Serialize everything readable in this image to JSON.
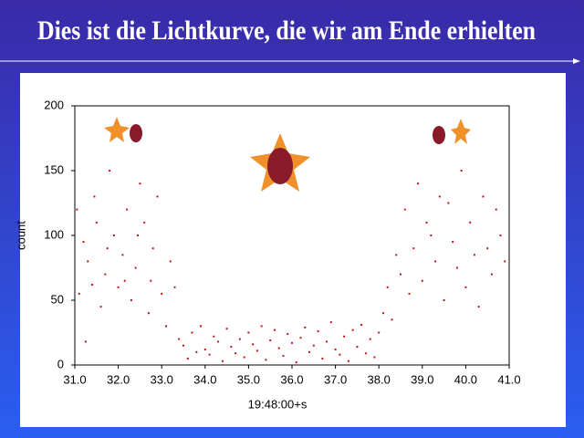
{
  "slide": {
    "title": "Dies ist die Lichtkurve, die wir am Ende erhielten"
  },
  "chart_data": {
    "type": "scatter",
    "xlabel": "19:48:00+s",
    "ylabel": "count",
    "color": "#c0141c",
    "xlim": [
      31,
      41
    ],
    "xticks": [
      {
        "value": 31,
        "label": "31.0"
      },
      {
        "value": 32,
        "label": "32.0"
      },
      {
        "value": 33,
        "label": "33.0"
      },
      {
        "value": 34,
        "label": "34.0"
      },
      {
        "value": 35,
        "label": "35.0"
      },
      {
        "value": 36,
        "label": "36.0"
      },
      {
        "value": 37,
        "label": "37.0"
      },
      {
        "value": 38,
        "label": "38.0"
      },
      {
        "value": 39,
        "label": "39.0"
      },
      {
        "value": 40,
        "label": "40.0"
      },
      {
        "value": 41,
        "label": "41.0"
      }
    ],
    "ylim": [
      0,
      200
    ],
    "yticks": [
      0,
      50,
      100,
      150,
      200
    ],
    "x": [
      31.05,
      31.1,
      31.2,
      31.25,
      31.3,
      31.4,
      31.45,
      31.5,
      31.6,
      31.7,
      31.75,
      31.8,
      31.9,
      32.0,
      32.1,
      32.15,
      32.2,
      32.3,
      32.4,
      32.45,
      32.5,
      32.6,
      32.7,
      32.75,
      32.8,
      32.9,
      33.0,
      33.1,
      33.2,
      33.3,
      33.4,
      33.5,
      33.6,
      33.7,
      33.8,
      33.9,
      34.0,
      34.1,
      34.2,
      34.3,
      34.4,
      34.5,
      34.6,
      34.7,
      34.8,
      34.9,
      35.0,
      35.1,
      35.2,
      35.3,
      35.4,
      35.5,
      35.6,
      35.7,
      35.8,
      35.9,
      36.0,
      36.1,
      36.2,
      36.3,
      36.4,
      36.5,
      36.6,
      36.7,
      36.8,
      36.9,
      37.0,
      37.1,
      37.2,
      37.3,
      37.4,
      37.5,
      37.6,
      37.7,
      37.8,
      37.9,
      38.0,
      38.1,
      38.2,
      38.3,
      38.4,
      38.5,
      38.6,
      38.7,
      38.8,
      38.9,
      39.0,
      39.1,
      39.2,
      39.3,
      39.4,
      39.5,
      39.6,
      39.7,
      39.8,
      39.9,
      40.0,
      40.1,
      40.2,
      40.3,
      40.4,
      40.5,
      40.6,
      40.7,
      40.8,
      40.9
    ],
    "values": [
      120,
      55,
      95,
      18,
      80,
      62,
      130,
      110,
      45,
      70,
      90,
      150,
      100,
      60,
      85,
      65,
      120,
      50,
      75,
      100,
      140,
      110,
      40,
      65,
      90,
      130,
      55,
      30,
      80,
      60,
      20,
      15,
      5,
      25,
      10,
      30,
      12,
      8,
      22,
      18,
      3,
      28,
      14,
      9,
      20,
      6,
      25,
      16,
      11,
      30,
      4,
      19,
      27,
      13,
      7,
      24,
      17,
      2,
      21,
      29,
      10,
      15,
      26,
      5,
      18,
      33,
      12,
      8,
      22,
      3,
      27,
      14,
      31,
      9,
      20,
      6,
      25,
      40,
      60,
      35,
      85,
      70,
      120,
      55,
      90,
      140,
      65,
      110,
      100,
      80,
      130,
      50,
      125,
      95,
      75,
      150,
      60,
      110,
      85,
      45,
      130,
      90,
      70,
      120,
      100,
      80
    ]
  }
}
